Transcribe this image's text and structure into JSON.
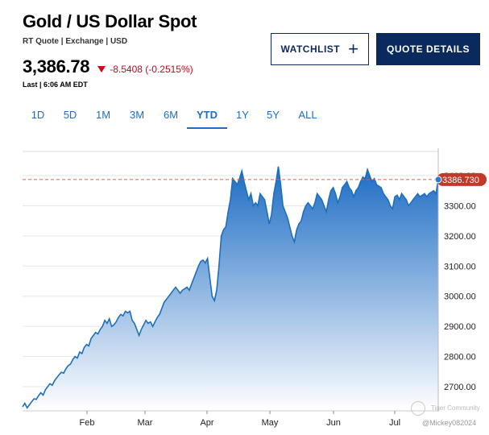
{
  "header": {
    "title": "Gold / US Dollar Spot",
    "subtitle": "RT Quote | Exchange | USD",
    "price": "3,386.78",
    "change": "-8.5408 (-0.2515%)",
    "last": "Last | 6:06 AM EDT"
  },
  "buttons": {
    "watchlist": "WATCHLIST",
    "quote_details": "QUOTE DETAILS"
  },
  "tabs": [
    "1D",
    "5D",
    "1M",
    "3M",
    "6M",
    "YTD",
    "1Y",
    "5Y",
    "ALL"
  ],
  "active_tab": "YTD",
  "colors": {
    "line": "#1f6fb8",
    "fill_top": "#2a7bd0",
    "ref_line": "#d9634a",
    "badge": "#c0392b",
    "nav": "#0a2a5e",
    "down": "#d0021b"
  },
  "watermark": {
    "text1": "Tiger Community",
    "text2": "@Mickey082024"
  },
  "chart_data": {
    "type": "area",
    "xlabel": "",
    "ylabel": "",
    "x_ticks": [
      "Feb",
      "Mar",
      "Apr",
      "May",
      "Jun",
      "Jul"
    ],
    "y_ticks": [
      2700,
      2800,
      2900,
      3000,
      3100,
      3200,
      3300,
      3400
    ],
    "ylim": [
      2620,
      3480
    ],
    "last_value_label": "3386.730",
    "reference_value": 3386.78,
    "grid": "horizontal",
    "series": [
      {
        "values": [
          2633,
          2645,
          2630,
          2640,
          2650,
          2660,
          2658,
          2670,
          2680,
          2672,
          2690,
          2700,
          2710,
          2705,
          2720,
          2730,
          2740,
          2748,
          2745,
          2760,
          2770,
          2775,
          2790,
          2800,
          2795,
          2815,
          2810,
          2830,
          2840,
          2835,
          2860,
          2870,
          2880,
          2875,
          2890,
          2900,
          2920,
          2910,
          2925,
          2900,
          2905,
          2915,
          2930,
          2940,
          2935,
          2950,
          2945,
          2950,
          2920,
          2910,
          2890,
          2870,
          2890,
          2905,
          2920,
          2910,
          2915,
          2900,
          2915,
          2930,
          2940,
          2960,
          2980,
          2990,
          3000,
          3010,
          3020,
          3030,
          3020,
          3010,
          3020,
          3025,
          3030,
          3020,
          3040,
          3060,
          3080,
          3100,
          3115,
          3120,
          3110,
          3125,
          3060,
          3000,
          2985,
          3020,
          3100,
          3200,
          3220,
          3230,
          3280,
          3320,
          3390,
          3380,
          3370,
          3390,
          3415,
          3380,
          3350,
          3320,
          3340,
          3300,
          3310,
          3300,
          3340,
          3330,
          3320,
          3280,
          3240,
          3270,
          3340,
          3380,
          3430,
          3370,
          3300,
          3280,
          3260,
          3230,
          3200,
          3180,
          3220,
          3240,
          3250,
          3280,
          3300,
          3310,
          3300,
          3290,
          3310,
          3340,
          3330,
          3320,
          3300,
          3280,
          3320,
          3350,
          3360,
          3340,
          3310,
          3330,
          3360,
          3370,
          3380,
          3360,
          3350,
          3330,
          3350,
          3360,
          3380,
          3395,
          3390,
          3420,
          3400,
          3380,
          3390,
          3370,
          3365,
          3360,
          3340,
          3330,
          3320,
          3300,
          3290,
          3330,
          3335,
          3320,
          3340,
          3330,
          3320,
          3300,
          3310,
          3320,
          3330,
          3340,
          3330,
          3335,
          3340,
          3330,
          3340,
          3345,
          3350,
          3340,
          3386.73
        ]
      }
    ]
  }
}
